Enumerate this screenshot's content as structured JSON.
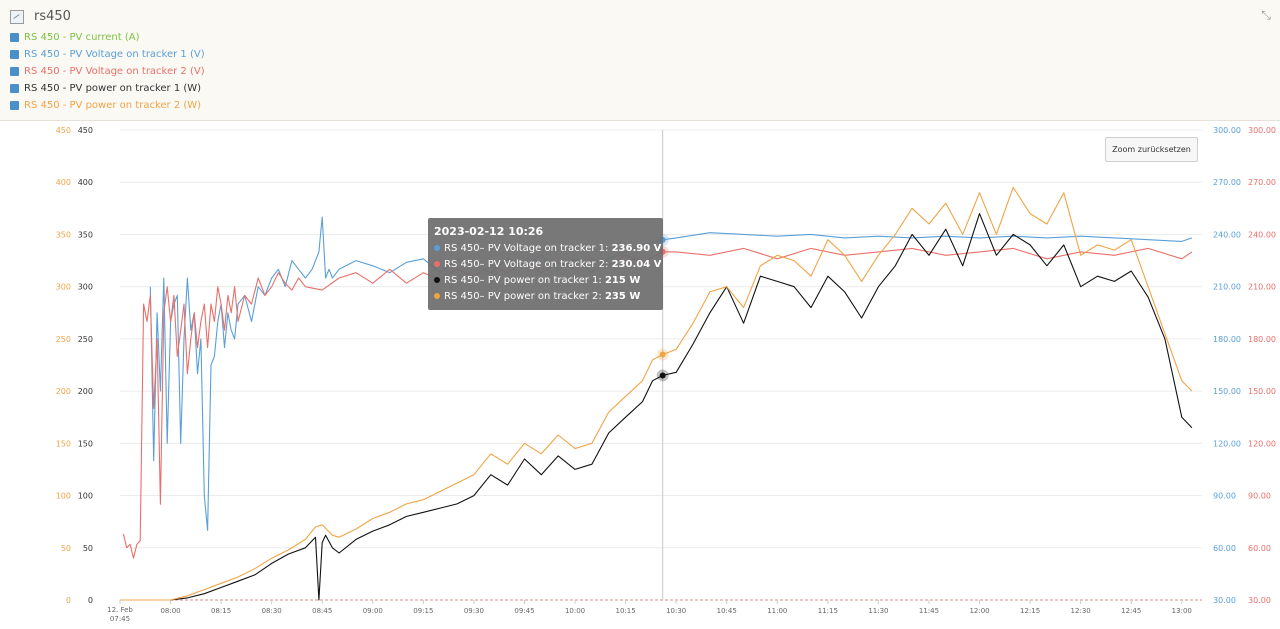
{
  "header": {
    "title": "rs450",
    "legend": [
      {
        "label": "RS 450 - PV current (A)",
        "color": "#7cc243"
      },
      {
        "label": "RS 450 - PV Voltage on tracker 1 (V)",
        "color": "#5a9fd8"
      },
      {
        "label": "RS 450 - PV Voltage on tracker 2 (V)",
        "color": "#e8706a"
      },
      {
        "label": "RS 450 - PV power on tracker 1 (W)",
        "color": "#333333"
      },
      {
        "label": "RS 450 - PV power on tracker 2 (W)",
        "color": "#f0a446"
      }
    ]
  },
  "zoom_reset_label": "Zoom zurücksetzen",
  "tooltip": {
    "title": "2023-02-12 10:26",
    "rows": [
      {
        "label": "RS 450– PV Voltage on tracker 1:",
        "value": "236.90 V",
        "color": "#5a9fd8"
      },
      {
        "label": "RS 450– PV Voltage on tracker 2:",
        "value": "230.04 V",
        "color": "#e8706a"
      },
      {
        "label": "RS 450– PV power on tracker 1:",
        "value": "215 W",
        "color": "#111111"
      },
      {
        "label": "RS 450– PV power on tracker 2:",
        "value": "235 W",
        "color": "#f0a446"
      }
    ]
  },
  "chart_data": {
    "type": "line",
    "x_tick_labels": [
      "12. Feb 07:45",
      "08:00",
      "08:15",
      "08:30",
      "08:45",
      "09:00",
      "09:15",
      "09:30",
      "09:45",
      "10:00",
      "10:15",
      "10:30",
      "10:45",
      "11:00",
      "11:15",
      "11:30",
      "11:45",
      "12:00",
      "12:15",
      "12:30",
      "12:45",
      "13:00"
    ],
    "x_tick_minutes": [
      465,
      480,
      495,
      510,
      525,
      540,
      555,
      570,
      585,
      600,
      615,
      630,
      645,
      660,
      675,
      690,
      705,
      720,
      735,
      750,
      765,
      780
    ],
    "x_range_minutes": [
      465,
      786
    ],
    "crosshair_minute": 626,
    "axes": {
      "left_orange": {
        "ticks": [
          0,
          50,
          100,
          150,
          200,
          250,
          300,
          350,
          400,
          450
        ],
        "color": "#f0a446"
      },
      "left_black": {
        "ticks": [
          0,
          50,
          100,
          150,
          200,
          250,
          300,
          350,
          400,
          450
        ],
        "color": "#333333"
      },
      "right_blue": {
        "ticks": [
          "30.00",
          "60.00",
          "90.00",
          "120.00",
          "150.00",
          "180.00",
          "210.00",
          "240.00",
          "270.00",
          "300.00"
        ],
        "color": "#5a9fd8"
      },
      "right_red": {
        "ticks": [
          "30.00",
          "60.00",
          "90.00",
          "120.00",
          "150.00",
          "180.00",
          "210.00",
          "240.00",
          "270.00",
          "300.00"
        ],
        "color": "#e8706a"
      }
    },
    "ylim_power": [
      0,
      450
    ],
    "ylim_voltage": [
      30,
      300
    ],
    "series": [
      {
        "name": "RS 450 - PV Voltage on tracker 1 (V)",
        "axis": "voltage",
        "color": "#5a9fd8",
        "x": [
          474,
          475,
          476,
          477,
          478,
          479,
          480,
          481,
          482,
          483,
          484,
          485,
          486,
          487,
          488,
          489,
          490,
          491,
          492,
          493,
          494,
          495,
          496,
          497,
          498,
          499,
          500,
          502,
          504,
          506,
          508,
          510,
          512,
          514,
          516,
          518,
          520,
          522,
          524,
          525,
          526,
          527,
          528,
          530,
          535,
          540,
          545,
          550,
          555,
          560,
          565,
          570,
          575,
          580,
          585,
          590,
          595,
          600,
          605,
          610,
          615,
          620,
          626,
          630,
          640,
          650,
          660,
          670,
          680,
          690,
          700,
          710,
          720,
          730,
          740,
          750,
          760,
          770,
          780,
          783
        ],
        "y": [
          210,
          110,
          195,
          150,
          215,
          120,
          190,
          200,
          205,
          120,
          180,
          215,
          185,
          195,
          160,
          180,
          90,
          70,
          165,
          170,
          190,
          200,
          175,
          195,
          185,
          180,
          200,
          205,
          190,
          210,
          205,
          215,
          220,
          210,
          225,
          220,
          215,
          220,
          230,
          250,
          215,
          220,
          215,
          220,
          225,
          222,
          218,
          224,
          226,
          218,
          226,
          222,
          218,
          226,
          222,
          228,
          220,
          226,
          218,
          226,
          230,
          234,
          236.9,
          238,
          241,
          240,
          239,
          240,
          238,
          239,
          238,
          239,
          238,
          239,
          238,
          239,
          238,
          237,
          236,
          238
        ]
      },
      {
        "name": "RS 450 - PV Voltage on tracker 2 (V)",
        "axis": "voltage",
        "color": "#e8706a",
        "x": [
          466,
          467,
          468,
          469,
          470,
          471,
          472,
          473,
          474,
          475,
          476,
          477,
          478,
          479,
          480,
          481,
          482,
          483,
          484,
          485,
          486,
          487,
          488,
          489,
          490,
          491,
          492,
          493,
          494,
          495,
          496,
          497,
          498,
          499,
          500,
          502,
          504,
          506,
          508,
          510,
          512,
          514,
          516,
          518,
          520,
          525,
          530,
          535,
          540,
          545,
          550,
          555,
          560,
          565,
          570,
          575,
          580,
          585,
          590,
          595,
          600,
          605,
          610,
          615,
          620,
          626,
          630,
          640,
          650,
          660,
          670,
          680,
          690,
          700,
          710,
          720,
          730,
          740,
          750,
          760,
          770,
          780,
          783
        ],
        "y": [
          68,
          60,
          62,
          54,
          62,
          64,
          200,
          190,
          205,
          140,
          180,
          85,
          195,
          210,
          190,
          205,
          170,
          185,
          200,
          160,
          180,
          195,
          175,
          190,
          200,
          175,
          200,
          190,
          210,
          200,
          185,
          205,
          195,
          210,
          190,
          205,
          200,
          215,
          205,
          210,
          218,
          212,
          208,
          215,
          210,
          208,
          215,
          218,
          212,
          220,
          212,
          218,
          214,
          220,
          216,
          222,
          218,
          224,
          218,
          224,
          220,
          226,
          222,
          228,
          224,
          230.04,
          230,
          228,
          232,
          226,
          232,
          228,
          230,
          232,
          228,
          230,
          232,
          226,
          230,
          228,
          232,
          226,
          230
        ]
      },
      {
        "name": "RS 450 - PV power on tracker 1 (W)",
        "axis": "power",
        "color": "#111111",
        "x": [
          465,
          470,
          475,
          480,
          485,
          490,
          495,
          500,
          505,
          510,
          515,
          520,
          523,
          524,
          525,
          526,
          528,
          530,
          535,
          540,
          545,
          550,
          555,
          560,
          565,
          570,
          575,
          580,
          585,
          590,
          595,
          600,
          605,
          610,
          615,
          620,
          623,
          626,
          630,
          635,
          640,
          645,
          650,
          655,
          660,
          665,
          670,
          675,
          680,
          685,
          690,
          695,
          700,
          705,
          710,
          715,
          720,
          725,
          730,
          735,
          740,
          745,
          750,
          755,
          760,
          765,
          770,
          775,
          780,
          783
        ],
        "y": [
          0,
          0,
          0,
          0,
          2,
          6,
          12,
          18,
          24,
          35,
          44,
          50,
          60,
          0,
          55,
          62,
          50,
          45,
          58,
          66,
          72,
          80,
          84,
          88,
          92,
          100,
          120,
          110,
          135,
          120,
          138,
          125,
          130,
          160,
          175,
          190,
          210,
          215,
          218,
          245,
          275,
          300,
          265,
          310,
          305,
          300,
          280,
          310,
          295,
          270,
          300,
          320,
          350,
          330,
          355,
          320,
          370,
          330,
          350,
          340,
          320,
          340,
          300,
          310,
          305,
          315,
          290,
          250,
          175,
          165
        ]
      },
      {
        "name": "RS 450 - PV power on tracker 2 (W)",
        "axis": "power",
        "color": "#f0a446",
        "x": [
          465,
          470,
          475,
          480,
          485,
          490,
          495,
          500,
          505,
          510,
          515,
          520,
          523,
          525,
          528,
          530,
          535,
          540,
          545,
          550,
          555,
          560,
          565,
          570,
          575,
          580,
          585,
          590,
          595,
          600,
          605,
          610,
          615,
          620,
          623,
          626,
          630,
          635,
          640,
          645,
          650,
          655,
          660,
          665,
          670,
          675,
          680,
          685,
          690,
          695,
          700,
          705,
          710,
          715,
          720,
          725,
          730,
          735,
          740,
          745,
          750,
          755,
          760,
          765,
          770,
          775,
          780,
          783
        ],
        "y": [
          0,
          0,
          0,
          0,
          4,
          10,
          16,
          22,
          30,
          40,
          48,
          58,
          70,
          72,
          62,
          60,
          68,
          78,
          84,
          92,
          96,
          104,
          112,
          120,
          140,
          130,
          150,
          140,
          158,
          145,
          150,
          180,
          195,
          210,
          230,
          235,
          240,
          265,
          295,
          300,
          280,
          320,
          330,
          325,
          310,
          345,
          330,
          305,
          330,
          350,
          375,
          360,
          380,
          350,
          390,
          350,
          395,
          370,
          360,
          390,
          330,
          340,
          335,
          345,
          300,
          255,
          210,
          200
        ]
      }
    ]
  }
}
